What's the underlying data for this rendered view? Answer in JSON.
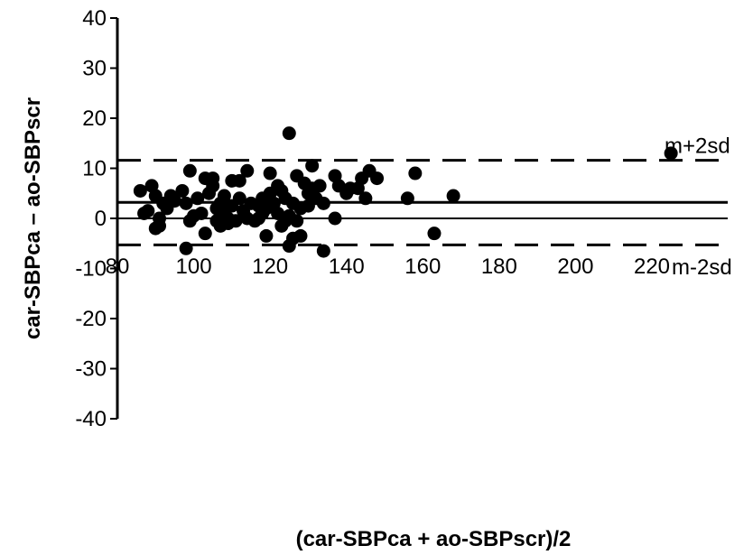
{
  "chart_data": {
    "type": "scatter",
    "title": "",
    "xlabel": "(car-SBPca + ao-SBPscr)/2",
    "ylabel": "car-SBPca – ao-SBPscr",
    "xlim": [
      80,
      230
    ],
    "ylim": [
      -40,
      40
    ],
    "x_ticks": [
      80,
      100,
      120,
      140,
      160,
      180,
      200,
      220
    ],
    "y_ticks": [
      40,
      30,
      20,
      10,
      0,
      -10,
      -20,
      -30,
      -40
    ],
    "x_tick_labels": [
      "80",
      "100",
      "120",
      "140",
      "160",
      "180",
      "200",
      "220"
    ],
    "y_tick_labels": [
      "40",
      "30",
      "20",
      "10",
      "0",
      "-10",
      "-20",
      "-30",
      "-40"
    ],
    "grid": false,
    "mean_line": 3.2,
    "upper_limit": {
      "value": 11.6,
      "label": "m+2sd"
    },
    "lower_limit": {
      "value": -5.3,
      "label": "m-2sd"
    },
    "points": [
      [
        86,
        5.5
      ],
      [
        87,
        1
      ],
      [
        88,
        1.5
      ],
      [
        89,
        6.5
      ],
      [
        90,
        -2
      ],
      [
        90,
        4.5
      ],
      [
        91,
        0
      ],
      [
        91,
        -1.5
      ],
      [
        92,
        3
      ],
      [
        93,
        2
      ],
      [
        94,
        4.5
      ],
      [
        95,
        3.5
      ],
      [
        97,
        5.5
      ],
      [
        98,
        3
      ],
      [
        98,
        -6
      ],
      [
        99,
        9.5
      ],
      [
        99,
        -0.5
      ],
      [
        100,
        0.5
      ],
      [
        101,
        4
      ],
      [
        102,
        1
      ],
      [
        103,
        -3
      ],
      [
        103,
        8
      ],
      [
        104,
        5
      ],
      [
        105,
        6.5
      ],
      [
        105,
        8
      ],
      [
        106,
        2
      ],
      [
        106,
        -0.5
      ],
      [
        107,
        3
      ],
      [
        107,
        -1.5
      ],
      [
        108,
        4.5
      ],
      [
        108,
        1.5
      ],
      [
        109,
        0
      ],
      [
        109,
        -1
      ],
      [
        110,
        7.5
      ],
      [
        110,
        2.5
      ],
      [
        111,
        -0.5
      ],
      [
        112,
        7.5
      ],
      [
        112,
        4
      ],
      [
        113,
        1.5
      ],
      [
        114,
        9.5
      ],
      [
        114,
        0
      ],
      [
        115,
        3
      ],
      [
        116,
        -0.5
      ],
      [
        117,
        0
      ],
      [
        117,
        2.5
      ],
      [
        118,
        4
      ],
      [
        118,
        1
      ],
      [
        119,
        -3.5
      ],
      [
        119,
        2
      ],
      [
        120,
        9
      ],
      [
        120,
        5
      ],
      [
        121,
        3
      ],
      [
        122,
        6.5
      ],
      [
        122,
        1
      ],
      [
        123,
        5.5
      ],
      [
        123,
        -1.5
      ],
      [
        124,
        4
      ],
      [
        124,
        -0.5
      ],
      [
        125,
        17
      ],
      [
        125,
        0.5
      ],
      [
        125,
        -5.5
      ],
      [
        126,
        3
      ],
      [
        126,
        -4
      ],
      [
        127,
        8.5
      ],
      [
        127,
        -0.5
      ],
      [
        128,
        2
      ],
      [
        128,
        -3.5
      ],
      [
        129,
        7
      ],
      [
        130,
        5
      ],
      [
        130,
        2.5
      ],
      [
        131,
        6
      ],
      [
        131,
        10.5
      ],
      [
        132,
        4
      ],
      [
        133,
        6.5
      ],
      [
        134,
        3
      ],
      [
        134,
        -6.5
      ],
      [
        137,
        0
      ],
      [
        137,
        8.5
      ],
      [
        138,
        6.5
      ],
      [
        140,
        5
      ],
      [
        141,
        6
      ],
      [
        143,
        6
      ],
      [
        144,
        8
      ],
      [
        145,
        4
      ],
      [
        146,
        9.5
      ],
      [
        148,
        8
      ],
      [
        156,
        4
      ],
      [
        158,
        9
      ],
      [
        163,
        -3
      ],
      [
        168,
        4.5
      ],
      [
        225,
        13
      ]
    ]
  }
}
